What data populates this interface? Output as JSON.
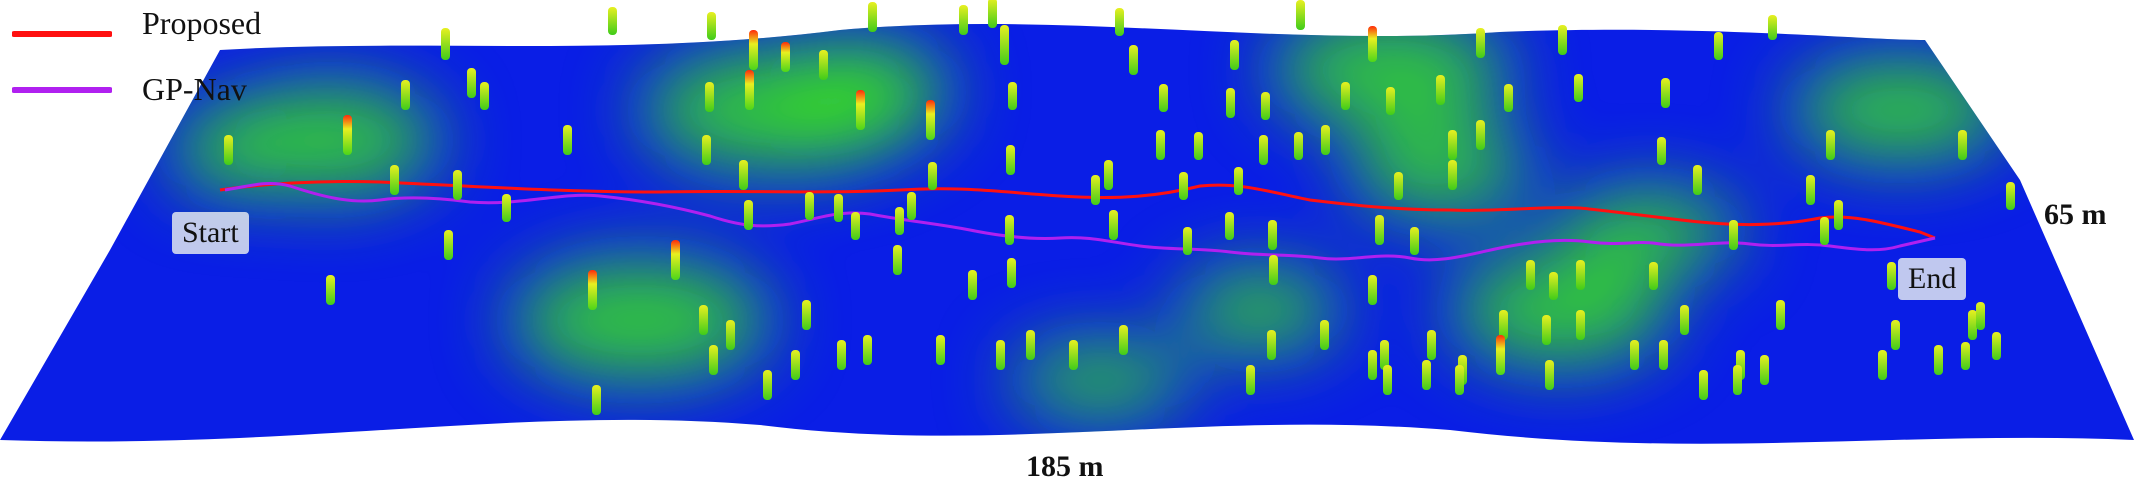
{
  "legend": [
    {
      "label": "Proposed",
      "color": "#ff1010"
    },
    {
      "label": "GP-Nav",
      "color": "#b020f0"
    }
  ],
  "labels": {
    "start": "Start",
    "end": "End",
    "width_dim": "65 m",
    "length_dim": "185 m"
  },
  "colors": {
    "terrain_base": "#0a1ee6",
    "terrain_high": "#38e81a",
    "pillar_low": "#4cd61a",
    "pillar_mid": "#e8f020",
    "pillar_top": "#ff2a0a"
  }
}
